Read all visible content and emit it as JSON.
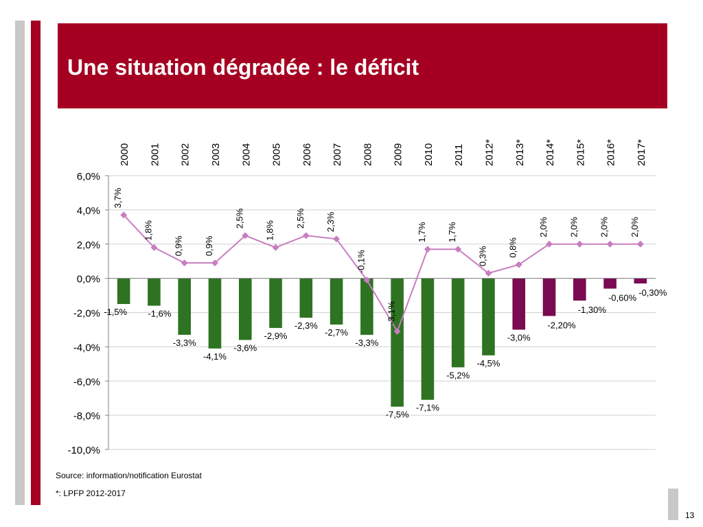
{
  "slide": {
    "title": "Une situation dégradée : le déficit",
    "source_note": "Source:  information/notification Eurostat",
    "lpfp_note": "*: LPFP 2012-2017",
    "page_number": "13",
    "colors": {
      "title_bg": "#A50021",
      "left_bar_gray": "#C8C8C8",
      "left_bar_red": "#A50021"
    }
  },
  "chart_data": {
    "type": "bar",
    "categories": [
      "2000",
      "2001",
      "2002",
      "2003",
      "2004",
      "2005",
      "2006",
      "2007",
      "2008",
      "2009",
      "2010",
      "2011",
      "2012*",
      "2013*",
      "2014*",
      "2015*",
      "2016*",
      "2017*"
    ],
    "ylim": [
      -10,
      6
    ],
    "yticks": [
      6,
      4,
      2,
      0,
      -2,
      -4,
      -6,
      -8,
      -10
    ],
    "ytick_labels": [
      "6,0%",
      "4,0%",
      "2,0%",
      "0,0%",
      "-2,0%",
      "-4,0%",
      "-6,0%",
      "-8,0%",
      "-10,0%"
    ],
    "grid": true,
    "series": [
      {
        "kind": "bar",
        "values": [
          -1.5,
          -1.6,
          -3.3,
          -4.1,
          -3.6,
          -2.9,
          -2.3,
          -2.7,
          -3.3,
          -7.5,
          -7.1,
          -5.2,
          -4.5,
          -3.0,
          -2.2,
          -1.3,
          -0.6,
          -0.3
        ],
        "labels": [
          "-1,5%",
          "-1,6%",
          "-3,3%",
          "-4,1%",
          "-3,6%",
          "-2,9%",
          "-2,3%",
          "-2,7%",
          "-3,3%",
          "-7,5%",
          "-7,1%",
          "-5,2%",
          "-4,5%",
          "-3,0%",
          "-2,20%",
          "-1,30%",
          "-0,60%",
          "-0,30%"
        ],
        "colors": [
          "#2E7322",
          "#2E7322",
          "#2E7322",
          "#2E7322",
          "#2E7322",
          "#2E7322",
          "#2E7322",
          "#2E7322",
          "#2E7322",
          "#2E7322",
          "#2E7322",
          "#2E7322",
          "#2E7322",
          "#7A0A52",
          "#7A0A52",
          "#7A0A52",
          "#7A0A52",
          "#7A0A52"
        ]
      },
      {
        "kind": "line",
        "values": [
          3.7,
          1.8,
          0.9,
          0.9,
          2.5,
          1.8,
          2.5,
          2.3,
          -0.1,
          -3.1,
          1.7,
          1.7,
          0.3,
          0.8,
          2.0,
          2.0,
          2.0,
          2.0
        ],
        "labels": [
          "3,7%",
          "1,8%",
          "0,9%",
          "0,9%",
          "2,5%",
          "1,8%",
          "2,5%",
          "2,3%",
          "-0,1%",
          "-3,1%",
          "1,7%",
          "1,7%",
          "0,3%",
          "0,8%",
          "2,0%",
          "2,0%",
          "2,0%",
          "2,0%"
        ],
        "color": "#C87DC0"
      }
    ]
  }
}
